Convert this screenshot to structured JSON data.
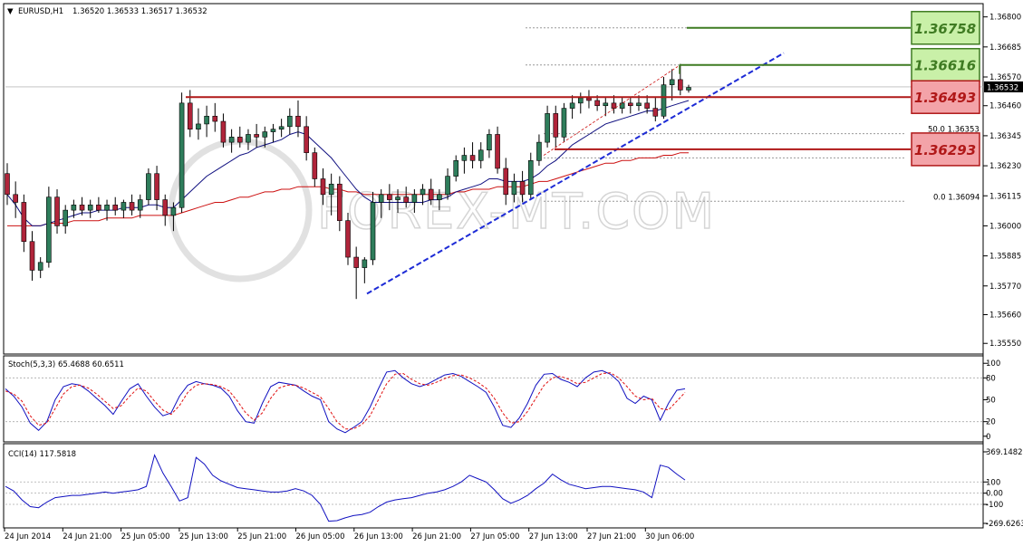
{
  "header": {
    "symbol": "EURUSD,H1",
    "ohlc": "1.36520 1.36533 1.36517 1.36532"
  },
  "watermark": "FOREX-MT.COM",
  "current_price": "1.36532",
  "fib_labels": {
    "f0": "0.0  1.36094",
    "f50": "50.0  1.36353"
  },
  "levels": [
    {
      "label": "1.36758",
      "price": 1.36758,
      "kind": "resistance",
      "color": "#3f7b22",
      "fill": "#c9f0a8"
    },
    {
      "label": "1.36616",
      "price": 1.36616,
      "kind": "resistance",
      "color": "#3f7b22",
      "fill": "#c9f0a8"
    },
    {
      "label": "1.36493",
      "price": 1.36493,
      "kind": "support",
      "color": "#b01818",
      "fill": "#f3a3a8"
    },
    {
      "label": "1.36293",
      "price": 1.36293,
      "kind": "support",
      "color": "#b01818",
      "fill": "#f3a3a8"
    }
  ],
  "chart_data": [
    {
      "type": "candlestick",
      "title": "EURUSD,H1",
      "y_ticks": [
        "1.36800",
        "1.36685",
        "1.36570",
        "1.36460",
        "1.36345",
        "1.36230",
        "1.36115",
        "1.36000",
        "1.35885",
        "1.35770",
        "1.35660",
        "1.35550"
      ],
      "ylim": [
        1.3553,
        1.3683
      ],
      "x_ticks": [
        "24 Jun 2014",
        "24 Jun 21:00",
        "25 Jun 05:00",
        "25 Jun 13:00",
        "25 Jun 21:00",
        "26 Jun 05:00",
        "26 Jun 13:00",
        "26 Jun 21:00",
        "27 Jun 05:00",
        "27 Jun 13:00",
        "27 Jun 21:00",
        "30 Jun 06:00"
      ],
      "candles": [
        [
          1.362,
          1.3624,
          1.3608,
          1.3612
        ],
        [
          1.3612,
          1.3617,
          1.3603,
          1.3609
        ],
        [
          1.3609,
          1.3612,
          1.359,
          1.3594
        ],
        [
          1.3594,
          1.3598,
          1.3579,
          1.3583
        ],
        [
          1.3583,
          1.3588,
          1.358,
          1.3586
        ],
        [
          1.3586,
          1.3615,
          1.3584,
          1.3611
        ],
        [
          1.3611,
          1.3614,
          1.3597,
          1.36
        ],
        [
          1.36,
          1.3608,
          1.3597,
          1.3606
        ],
        [
          1.3606,
          1.361,
          1.3603,
          1.3608
        ],
        [
          1.3608,
          1.3611,
          1.3604,
          1.3606
        ],
        [
          1.3606,
          1.361,
          1.3603,
          1.3608
        ],
        [
          1.3608,
          1.3611,
          1.3605,
          1.3606
        ],
        [
          1.3606,
          1.361,
          1.3602,
          1.3608
        ],
        [
          1.3608,
          1.3611,
          1.3604,
          1.3606
        ],
        [
          1.3606,
          1.361,
          1.3603,
          1.3609
        ],
        [
          1.3609,
          1.3612,
          1.3604,
          1.3606
        ],
        [
          1.3606,
          1.3612,
          1.3603,
          1.361
        ],
        [
          1.361,
          1.3622,
          1.3608,
          1.362
        ],
        [
          1.362,
          1.3623,
          1.3606,
          1.361
        ],
        [
          1.361,
          1.3612,
          1.36,
          1.3604
        ],
        [
          1.3604,
          1.3609,
          1.3598,
          1.3607
        ],
        [
          1.3607,
          1.3651,
          1.3605,
          1.3647
        ],
        [
          1.3647,
          1.3652,
          1.3634,
          1.3637
        ],
        [
          1.3637,
          1.3645,
          1.3633,
          1.3639
        ],
        [
          1.3639,
          1.3646,
          1.3634,
          1.3642
        ],
        [
          1.3642,
          1.3647,
          1.3636,
          1.364
        ],
        [
          1.364,
          1.3643,
          1.363,
          1.3632
        ],
        [
          1.3632,
          1.3637,
          1.3628,
          1.3634
        ],
        [
          1.3634,
          1.3638,
          1.363,
          1.3632
        ],
        [
          1.3632,
          1.3637,
          1.3629,
          1.3635
        ],
        [
          1.3635,
          1.3639,
          1.363,
          1.3634
        ],
        [
          1.3634,
          1.3638,
          1.363,
          1.3636
        ],
        [
          1.3636,
          1.3639,
          1.3632,
          1.3637
        ],
        [
          1.3637,
          1.3641,
          1.3634,
          1.3638
        ],
        [
          1.3638,
          1.3645,
          1.3635,
          1.3642
        ],
        [
          1.3642,
          1.3648,
          1.3634,
          1.3638
        ],
        [
          1.3638,
          1.3642,
          1.3625,
          1.3628
        ],
        [
          1.3628,
          1.363,
          1.3615,
          1.3618
        ],
        [
          1.3618,
          1.3622,
          1.3608,
          1.3612
        ],
        [
          1.3612,
          1.362,
          1.3604,
          1.3616
        ],
        [
          1.3616,
          1.3619,
          1.3598,
          1.3602
        ],
        [
          1.3602,
          1.3605,
          1.3585,
          1.3588
        ],
        [
          1.3588,
          1.3592,
          1.3572,
          1.3584
        ],
        [
          1.3584,
          1.3588,
          1.3578,
          1.3587
        ],
        [
          1.3587,
          1.3613,
          1.3585,
          1.3609
        ],
        [
          1.3609,
          1.3614,
          1.3603,
          1.3612
        ],
        [
          1.3612,
          1.3616,
          1.3606,
          1.361
        ],
        [
          1.361,
          1.3614,
          1.3605,
          1.3611
        ],
        [
          1.3611,
          1.3615,
          1.3607,
          1.3609
        ],
        [
          1.3609,
          1.3614,
          1.3605,
          1.3612
        ],
        [
          1.3612,
          1.3616,
          1.3608,
          1.3614
        ],
        [
          1.3614,
          1.3618,
          1.3608,
          1.361
        ],
        [
          1.361,
          1.3614,
          1.3606,
          1.3612
        ],
        [
          1.3612,
          1.3622,
          1.361,
          1.3619
        ],
        [
          1.3619,
          1.3627,
          1.3617,
          1.3625
        ],
        [
          1.3625,
          1.363,
          1.362,
          1.3627
        ],
        [
          1.3627,
          1.3632,
          1.3622,
          1.3625
        ],
        [
          1.3625,
          1.3632,
          1.3622,
          1.3629
        ],
        [
          1.3629,
          1.3637,
          1.3626,
          1.3635
        ],
        [
          1.3635,
          1.3638,
          1.362,
          1.3622
        ],
        [
          1.3622,
          1.3626,
          1.3608,
          1.3612
        ],
        [
          1.3612,
          1.362,
          1.3609,
          1.3617
        ],
        [
          1.3617,
          1.3621,
          1.3609,
          1.3612
        ],
        [
          1.3612,
          1.3628,
          1.361,
          1.3625
        ],
        [
          1.3625,
          1.3635,
          1.3623,
          1.3632
        ],
        [
          1.3632,
          1.3646,
          1.363,
          1.3643
        ],
        [
          1.3643,
          1.3646,
          1.363,
          1.3634
        ],
        [
          1.3634,
          1.3647,
          1.3632,
          1.3645
        ],
        [
          1.3645,
          1.365,
          1.3641,
          1.3647
        ],
        [
          1.3647,
          1.3651,
          1.3643,
          1.3649
        ],
        [
          1.3649,
          1.3652,
          1.3645,
          1.3648
        ],
        [
          1.3648,
          1.365,
          1.3644,
          1.3646
        ],
        [
          1.3646,
          1.3649,
          1.3642,
          1.3647
        ],
        [
          1.3647,
          1.365,
          1.3643,
          1.3645
        ],
        [
          1.3645,
          1.3649,
          1.3643,
          1.3647
        ],
        [
          1.3647,
          1.3649,
          1.3643,
          1.3646
        ],
        [
          1.3646,
          1.365,
          1.3644,
          1.3647
        ],
        [
          1.3647,
          1.365,
          1.3643,
          1.3645
        ],
        [
          1.3645,
          1.3649,
          1.364,
          1.3642
        ],
        [
          1.3642,
          1.3657,
          1.3641,
          1.3654
        ],
        [
          1.3654,
          1.366,
          1.3648,
          1.3656
        ],
        [
          1.3656,
          1.3662,
          1.365,
          1.3652
        ],
        [
          1.3652,
          1.3654,
          1.3651,
          1.3653
        ]
      ],
      "ma_fast": [
        1.3612,
        1.3608,
        1.3603,
        1.36,
        1.36,
        1.3601,
        1.3602,
        1.3603,
        1.3604,
        1.3605,
        1.3605,
        1.3606,
        1.3606,
        1.3606,
        1.3607,
        1.3607,
        1.3607,
        1.3608,
        1.3608,
        1.3607,
        1.3607,
        1.361,
        1.3613,
        1.3616,
        1.3619,
        1.3621,
        1.3623,
        1.3625,
        1.3627,
        1.3628,
        1.363,
        1.3631,
        1.3632,
        1.3633,
        1.3635,
        1.3636,
        1.3635,
        1.3632,
        1.3629,
        1.3626,
        1.3622,
        1.3618,
        1.3614,
        1.3611,
        1.3609,
        1.3609,
        1.3609,
        1.3609,
        1.3609,
        1.3609,
        1.3609,
        1.361,
        1.361,
        1.3611,
        1.3613,
        1.3614,
        1.3615,
        1.3616,
        1.3618,
        1.3618,
        1.3617,
        1.3617,
        1.3617,
        1.3618,
        1.362,
        1.3623,
        1.3625,
        1.3628,
        1.3631,
        1.3633,
        1.3635,
        1.3637,
        1.3639,
        1.364,
        1.3641,
        1.3642,
        1.3643,
        1.3644,
        1.3644,
        1.3645,
        1.3646,
        1.3647,
        1.3648
      ],
      "ma_slow": [
        1.36,
        1.36,
        1.36,
        1.36,
        1.36,
        1.3601,
        1.3601,
        1.3601,
        1.3602,
        1.3602,
        1.3602,
        1.3602,
        1.3603,
        1.3603,
        1.3603,
        1.3603,
        1.3604,
        1.3604,
        1.3604,
        1.3604,
        1.3604,
        1.3605,
        1.3606,
        1.3607,
        1.3608,
        1.3609,
        1.3609,
        1.361,
        1.3611,
        1.3611,
        1.3612,
        1.3613,
        1.3613,
        1.3614,
        1.3614,
        1.3615,
        1.3615,
        1.3615,
        1.3615,
        1.3614,
        1.3614,
        1.3613,
        1.3613,
        1.3612,
        1.3612,
        1.3612,
        1.3612,
        1.3612,
        1.3612,
        1.3612,
        1.3612,
        1.3612,
        1.3612,
        1.3612,
        1.3613,
        1.3613,
        1.3614,
        1.3614,
        1.3614,
        1.3615,
        1.3615,
        1.3615,
        1.3615,
        1.3616,
        1.3617,
        1.3617,
        1.3618,
        1.3619,
        1.362,
        1.3621,
        1.3622,
        1.3623,
        1.3624,
        1.3624,
        1.3625,
        1.3625,
        1.3626,
        1.3626,
        1.3626,
        1.3627,
        1.3627,
        1.3628,
        1.3628
      ]
    },
    {
      "type": "line",
      "title": "Stoch(5,3,3) 65.4688 60.6511",
      "y_ticks": [
        "100",
        "80",
        "50",
        "20",
        "0"
      ],
      "ylim": [
        -4,
        104
      ],
      "main": [
        65,
        55,
        40,
        18,
        8,
        20,
        50,
        68,
        72,
        70,
        62,
        52,
        42,
        30,
        48,
        65,
        72,
        55,
        40,
        28,
        32,
        55,
        70,
        75,
        72,
        70,
        66,
        55,
        35,
        20,
        18,
        45,
        68,
        74,
        72,
        70,
        62,
        55,
        50,
        20,
        10,
        5,
        12,
        20,
        40,
        65,
        88,
        90,
        80,
        72,
        68,
        72,
        78,
        84,
        86,
        82,
        75,
        68,
        60,
        40,
        15,
        12,
        25,
        45,
        70,
        85,
        86,
        78,
        74,
        68,
        80,
        88,
        90,
        85,
        75,
        52,
        45,
        55,
        50,
        22,
        45,
        63,
        65
      ],
      "signal": [
        62,
        58,
        48,
        28,
        15,
        18,
        38,
        58,
        68,
        70,
        66,
        58,
        48,
        38,
        42,
        55,
        66,
        62,
        48,
        36,
        30,
        42,
        60,
        70,
        72,
        71,
        68,
        62,
        48,
        32,
        22,
        32,
        52,
        66,
        70,
        70,
        66,
        60,
        54,
        38,
        20,
        10,
        10,
        16,
        28,
        50,
        72,
        85,
        86,
        78,
        72,
        70,
        74,
        79,
        83,
        84,
        80,
        74,
        66,
        52,
        32,
        18,
        20,
        34,
        52,
        70,
        80,
        82,
        78,
        72,
        74,
        80,
        86,
        87,
        80,
        68,
        55,
        50,
        52,
        38,
        36,
        48,
        60
      ]
    },
    {
      "type": "line",
      "title": "CCI(14) 117.5818",
      "y_ticks": [
        "369.1482",
        "100",
        "0.00",
        "-100",
        "-269.6263"
      ],
      "ylim": [
        -269.6263,
        369.1482
      ],
      "values": [
        60,
        20,
        -60,
        -120,
        -130,
        -80,
        -40,
        -30,
        -20,
        -20,
        -10,
        0,
        10,
        0,
        10,
        20,
        30,
        60,
        340,
        180,
        60,
        -70,
        -40,
        320,
        260,
        160,
        110,
        80,
        50,
        40,
        30,
        20,
        10,
        10,
        20,
        40,
        20,
        -20,
        -100,
        -250,
        -245,
        -220,
        -200,
        -190,
        -170,
        -120,
        -80,
        -60,
        -50,
        -40,
        -20,
        0,
        10,
        30,
        60,
        100,
        160,
        130,
        100,
        30,
        -50,
        -90,
        -60,
        -20,
        40,
        90,
        170,
        120,
        80,
        60,
        40,
        50,
        60,
        60,
        50,
        40,
        30,
        10,
        -40,
        250,
        230,
        170,
        117.5818
      ]
    }
  ]
}
